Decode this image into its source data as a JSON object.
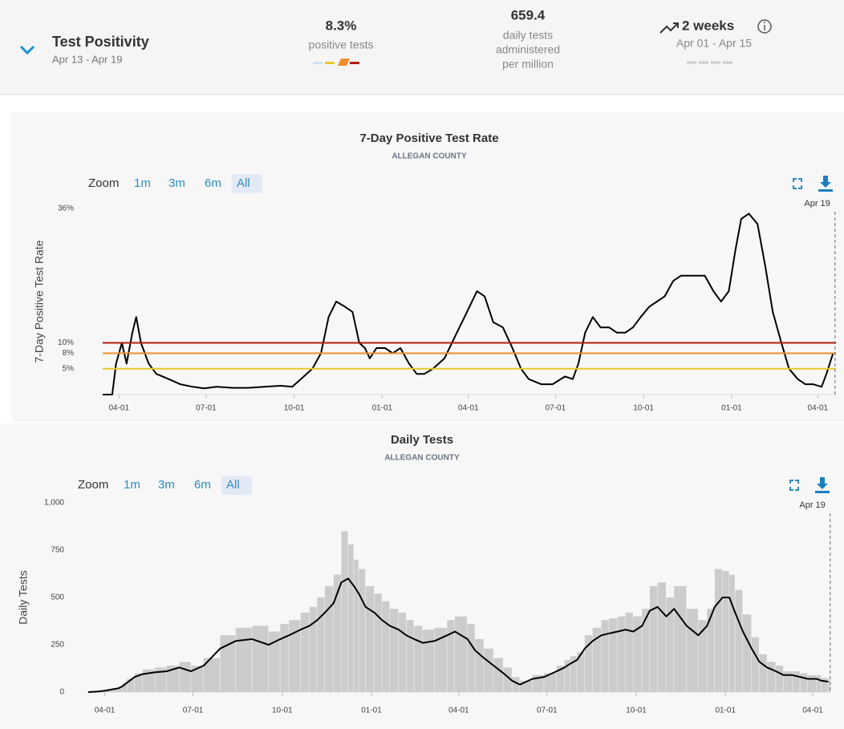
{
  "header": {
    "title": "Test Positivity",
    "dates": "Apr 13 - Apr 19",
    "metrics": [
      {
        "value": "8.3%",
        "label": "positive tests"
      },
      {
        "value": "659.4",
        "label": [
          "daily tests",
          "administered",
          "per million"
        ]
      },
      {
        "value": "2 weeks",
        "label": "Apr 01 - Apr 15"
      }
    ]
  },
  "chart_data": [
    {
      "type": "line",
      "title": "7-Day Positive Test Rate",
      "subtitle": "ALLEGAN COUNTY",
      "y_label": "7-Day Positive Test Rate",
      "zoom": {
        "label": "Zoom",
        "options": [
          "1m",
          "3m",
          "6m",
          "All"
        ],
        "selected": 3
      },
      "color": "#000000",
      "x": [
        0,
        10,
        14,
        20,
        25,
        31,
        35,
        40,
        48,
        56,
        69,
        81,
        94,
        106,
        119,
        136,
        152,
        169,
        186,
        198,
        207,
        219,
        228,
        236,
        244,
        253,
        261,
        268,
        274,
        279,
        286,
        295,
        303,
        311,
        320,
        328,
        336,
        345,
        357,
        370,
        378,
        391,
        399,
        408,
        418,
        428,
        437,
        445,
        458,
        470,
        483,
        491,
        497,
        504,
        512,
        520,
        529,
        537,
        546,
        554,
        562,
        571,
        579,
        587,
        596,
        604,
        617,
        629,
        638,
        646,
        654,
        661,
        667,
        675,
        684,
        692,
        700,
        709,
        717,
        726,
        734,
        742,
        751,
        756,
        763
      ],
      "values": [
        0,
        0,
        6,
        10,
        6,
        12,
        15,
        10,
        6,
        4,
        3,
        2,
        1.5,
        1.2,
        1.5,
        1.3,
        1.3,
        1.5,
        1.7,
        1.5,
        3,
        5,
        8,
        15,
        18,
        17,
        16,
        10,
        9,
        7,
        9,
        9,
        8,
        9,
        6,
        4,
        4,
        5,
        7,
        12,
        15,
        20,
        19,
        14,
        13,
        9,
        5,
        3,
        2,
        2,
        3.5,
        3,
        6,
        12,
        15,
        13,
        13,
        12,
        12,
        13,
        15,
        17,
        18,
        19,
        22,
        23,
        23,
        23,
        20,
        18,
        20,
        28,
        34,
        35,
        33,
        25,
        16,
        10,
        5,
        3,
        2,
        2,
        1.5,
        4,
        8
      ],
      "reference_lines": [
        {
          "value": 10,
          "color": "#b01e10"
        },
        {
          "value": 8,
          "color": "#f08c2c"
        },
        {
          "value": 5,
          "color": "#e8c82a"
        }
      ],
      "xlim": [
        0,
        766
      ],
      "ylim": [
        0,
        36
      ],
      "xticks": [
        {
          "value": 17,
          "label": "04-01"
        },
        {
          "value": 108,
          "label": "07-01"
        },
        {
          "value": 200,
          "label": "10-01"
        },
        {
          "value": 292,
          "label": "01-01"
        },
        {
          "value": 382,
          "label": "04-01"
        },
        {
          "value": 473,
          "label": "07-01"
        },
        {
          "value": 565,
          "label": "10-01"
        },
        {
          "value": 657,
          "label": "01-01"
        },
        {
          "value": 747,
          "label": "04-01"
        }
      ],
      "yticks": [
        {
          "value": 5,
          "label": "5%"
        },
        {
          "value": 8,
          "label": "8%"
        },
        {
          "value": 10,
          "label": "10%"
        },
        {
          "value": 36,
          "label": "36%"
        }
      ],
      "annotation": {
        "text": "Apr 19",
        "x": 765
      }
    },
    {
      "type": "bar_line",
      "title": "Daily Tests",
      "subtitle": "ALLEGAN COUNTY",
      "y_label": "Daily Tests",
      "zoom": {
        "label": "Zoom",
        "options": [
          "1m",
          "3m",
          "6m",
          "All"
        ],
        "selected": 3
      },
      "x": [
        0,
        10,
        14,
        20,
        25,
        31,
        35,
        40,
        48,
        56,
        69,
        81,
        94,
        106,
        119,
        136,
        152,
        169,
        186,
        198,
        207,
        219,
        228,
        236,
        244,
        253,
        261,
        268,
        274,
        279,
        286,
        295,
        303,
        311,
        320,
        328,
        336,
        345,
        357,
        370,
        378,
        391,
        399,
        408,
        418,
        428,
        437,
        445,
        458,
        470,
        483,
        491,
        497,
        504,
        512,
        520,
        529,
        537,
        546,
        554,
        562,
        571,
        579,
        587,
        596,
        604,
        617,
        629,
        638,
        646,
        654,
        661,
        667,
        675,
        684,
        692,
        700,
        709,
        717,
        726,
        734,
        742,
        751,
        756,
        763
      ],
      "series": [
        {
          "type": "bar",
          "color": "#cccccc",
          "values": [
            0,
            5,
            8,
            15,
            20,
            30,
            45,
            70,
            100,
            120,
            130,
            140,
            160,
            140,
            180,
            300,
            340,
            350,
            320,
            360,
            380,
            420,
            450,
            500,
            560,
            620,
            850,
            780,
            700,
            650,
            560,
            520,
            480,
            440,
            420,
            380,
            350,
            330,
            340,
            380,
            400,
            360,
            280,
            230,
            180,
            130,
            80,
            60,
            90,
            100,
            140,
            170,
            190,
            210,
            300,
            340,
            380,
            390,
            400,
            420,
            400,
            440,
            560,
            580,
            500,
            560,
            440,
            380,
            440,
            650,
            640,
            620,
            540,
            410,
            290,
            200,
            160,
            140,
            110,
            110,
            100,
            90,
            90,
            75,
            70
          ]
        },
        {
          "type": "line",
          "color": "#000000",
          "values": [
            0,
            3,
            5,
            10,
            15,
            20,
            30,
            50,
            80,
            95,
            105,
            110,
            130,
            110,
            140,
            230,
            270,
            280,
            250,
            280,
            300,
            330,
            350,
            380,
            420,
            470,
            580,
            600,
            560,
            520,
            450,
            420,
            380,
            350,
            330,
            300,
            280,
            260,
            270,
            300,
            320,
            280,
            220,
            180,
            140,
            100,
            60,
            40,
            70,
            80,
            110,
            130,
            150,
            170,
            230,
            270,
            300,
            310,
            320,
            330,
            320,
            350,
            430,
            450,
            400,
            440,
            350,
            300,
            350,
            450,
            500,
            500,
            420,
            320,
            230,
            160,
            130,
            110,
            90,
            90,
            80,
            70,
            70,
            60,
            55
          ]
        }
      ],
      "xlim": [
        0,
        766
      ],
      "ylim": [
        0,
        1000
      ],
      "xticks": [
        {
          "value": 17,
          "label": "04-01"
        },
        {
          "value": 108,
          "label": "07-01"
        },
        {
          "value": 200,
          "label": "10-01"
        },
        {
          "value": 292,
          "label": "01-01"
        },
        {
          "value": 382,
          "label": "04-01"
        },
        {
          "value": 473,
          "label": "07-01"
        },
        {
          "value": 565,
          "label": "10-01"
        },
        {
          "value": 657,
          "label": "01-01"
        },
        {
          "value": 747,
          "label": "04-01"
        }
      ],
      "yticks": [
        0,
        250,
        500,
        750,
        {
          "value": 1000,
          "label": "1,000"
        }
      ],
      "annotation": {
        "text": "Apr 19",
        "x": 765
      }
    }
  ]
}
